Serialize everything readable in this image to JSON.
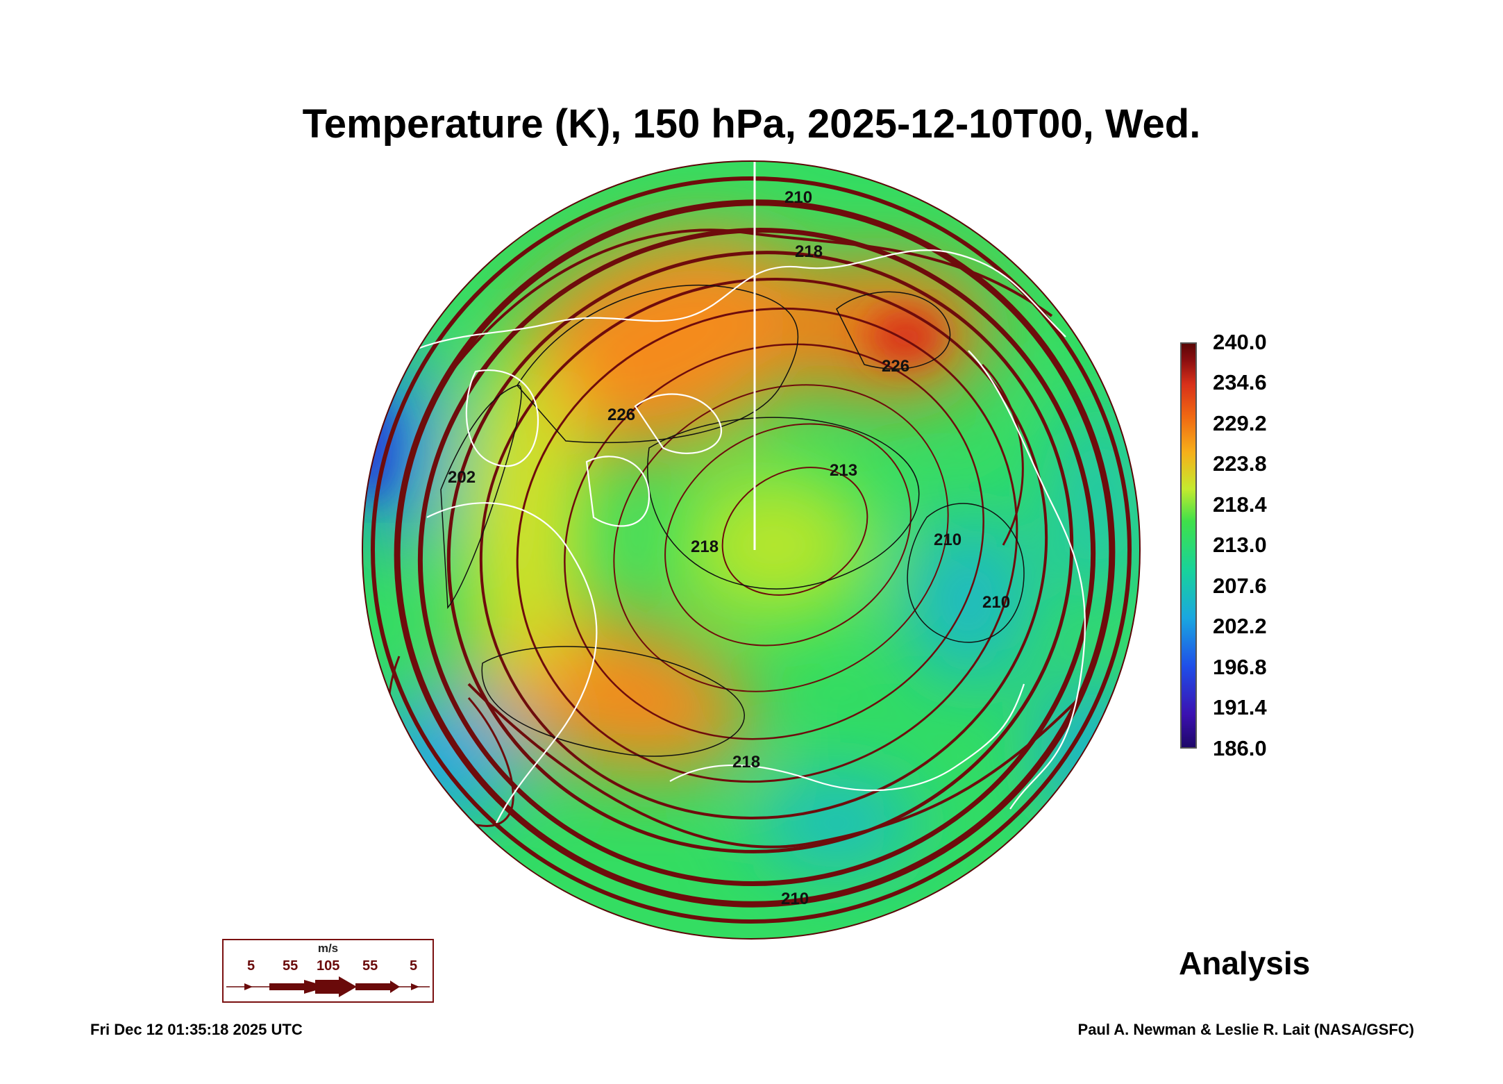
{
  "title": "Temperature (K), 150 hPa, 2025-12-10T00, Wed.",
  "colorbar": {
    "ticks": [
      "240.0",
      "234.6",
      "229.2",
      "223.8",
      "218.4",
      "213.0",
      "207.6",
      "202.2",
      "196.8",
      "191.4",
      "186.0"
    ],
    "colors": [
      "#1e0868",
      "#3b10b0",
      "#1f4ee8",
      "#1aa7e0",
      "#18d39a",
      "#3fe04a",
      "#c4ea2e",
      "#f6b01a",
      "#f06812",
      "#d8301a",
      "#8a0e10",
      "#5a0606"
    ]
  },
  "contour_labels": [
    "210",
    "218",
    "226",
    "226",
    "213",
    "218",
    "210",
    "210",
    "202",
    "218",
    "210"
  ],
  "legend": {
    "unit": "m/s",
    "values": [
      "5",
      "55",
      "105",
      "55",
      "5"
    ],
    "arrow_color": "#6a0a0a"
  },
  "status": "Analysis",
  "timestamp": "Fri Dec 12 01:35:18 2025 UTC",
  "credit": "Paul A. Newman & Leslie R. Lait (NASA/GSFC)"
}
